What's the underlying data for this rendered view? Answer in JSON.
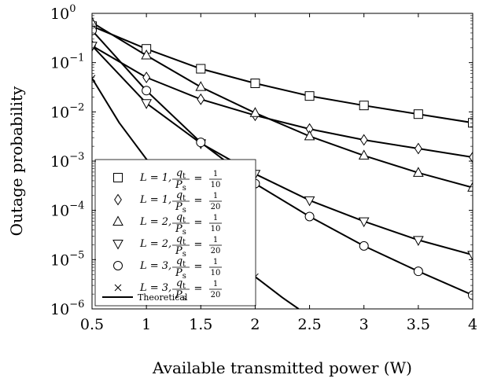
{
  "chart_data": {
    "type": "line",
    "title": "",
    "xlabel": "Available transmitted power (W)",
    "ylabel": "Outage probability",
    "xlim": [
      0.5,
      4
    ],
    "ylim_log10": [
      -6,
      0
    ],
    "y_scale": "log",
    "grid": false,
    "legend_position": "bottom-left",
    "x_ticks": [
      "0.5",
      "1",
      "1.5",
      "2",
      "2.5",
      "3",
      "3.5",
      "4"
    ],
    "x_tick_values": [
      0.5,
      1,
      1.5,
      2,
      2.5,
      3,
      3.5,
      4
    ],
    "y_ticks": [
      {
        "base": "10",
        "exp": "0",
        "value": 1
      },
      {
        "base": "10",
        "exp": "−1",
        "value": 0.1
      },
      {
        "base": "10",
        "exp": "−2",
        "value": 0.01
      },
      {
        "base": "10",
        "exp": "−3",
        "value": 0.001
      },
      {
        "base": "10",
        "exp": "−4",
        "value": 0.0001
      },
      {
        "base": "10",
        "exp": "−5",
        "value": 1e-05
      },
      {
        "base": "10",
        "exp": "−6",
        "value": 1e-06
      }
    ],
    "series": [
      {
        "marker": "square",
        "legend": {
          "L": "L = 1,",
          "num": "q",
          "num_sub": "t",
          "den": "P",
          "den_sub": "s",
          "frac_num": "1",
          "frac_den": "10"
        },
        "x": [
          0.5,
          1,
          1.5,
          2,
          2.5,
          3,
          3.5,
          4
        ],
        "y": [
          0.55,
          0.19,
          0.075,
          0.038,
          0.021,
          0.0135,
          0.009,
          0.006
        ],
        "marker_x": [
          0.5,
          1,
          1.5,
          2,
          2.5,
          3,
          3.5,
          4
        ],
        "marker_y": [
          0.55,
          0.19,
          0.075,
          0.038,
          0.021,
          0.0135,
          0.009,
          0.006
        ]
      },
      {
        "marker": "diamond",
        "legend": {
          "L": "L = 1,",
          "num": "q",
          "num_sub": "t",
          "den": "P",
          "den_sub": "s",
          "frac_num": "1",
          "frac_den": "20"
        },
        "x": [
          0.5,
          1,
          1.5,
          2,
          2.5,
          3,
          3.5,
          4
        ],
        "y": [
          0.22,
          0.05,
          0.018,
          0.0085,
          0.0045,
          0.0027,
          0.0018,
          0.0012
        ],
        "marker_x": [
          0.5,
          1,
          1.5,
          2,
          2.5,
          3,
          3.5,
          4
        ],
        "marker_y": [
          0.22,
          0.05,
          0.018,
          0.0085,
          0.0045,
          0.0027,
          0.0018,
          0.0012
        ]
      },
      {
        "marker": "triangle-up",
        "legend": {
          "L": "L = 2,",
          "num": "q",
          "num_sub": "t",
          "den": "P",
          "den_sub": "s",
          "frac_num": "1",
          "frac_den": "10"
        },
        "x": [
          0.5,
          1,
          1.5,
          2,
          2.5,
          3,
          3.5,
          4
        ],
        "y": [
          0.65,
          0.14,
          0.032,
          0.0095,
          0.0032,
          0.0013,
          0.00058,
          0.00029
        ],
        "marker_x": [
          0.5,
          1,
          1.5,
          2,
          2.5,
          3,
          3.5,
          4
        ],
        "marker_y": [
          0.65,
          0.14,
          0.032,
          0.0095,
          0.0032,
          0.0013,
          0.00058,
          0.00029
        ]
      },
      {
        "marker": "triangle-down",
        "legend": {
          "L": "L = 2,",
          "num": "q",
          "num_sub": "t",
          "den": "P",
          "den_sub": "s",
          "frac_num": "1",
          "frac_den": "20"
        },
        "x": [
          0.5,
          1,
          1.5,
          2,
          2.5,
          3,
          3.5,
          4
        ],
        "y": [
          0.22,
          0.015,
          0.0023,
          0.00055,
          0.00016,
          6e-05,
          2.5e-05,
          1.25e-05
        ],
        "marker_x": [
          0.5,
          1,
          1.5,
          2,
          2.5,
          3,
          3.5,
          4
        ],
        "marker_y": [
          0.22,
          0.015,
          0.0023,
          0.00055,
          0.00016,
          6e-05,
          2.5e-05,
          1.25e-05
        ]
      },
      {
        "marker": "circle",
        "legend": {
          "L": "L = 3,",
          "num": "q",
          "num_sub": "t",
          "den": "P",
          "den_sub": "s",
          "frac_num": "1",
          "frac_den": "10"
        },
        "x": [
          0.5,
          1,
          1.5,
          2,
          2.5,
          3,
          3.5,
          4
        ],
        "y": [
          0.45,
          0.027,
          0.0024,
          0.00035,
          7.5e-05,
          1.9e-05,
          5.8e-06,
          1.9e-06
        ],
        "marker_x": [
          0.5,
          1,
          1.5,
          2,
          2.5,
          3,
          3.5,
          4
        ],
        "marker_y": [
          0.45,
          0.027,
          0.0024,
          0.00035,
          7.5e-05,
          1.9e-05,
          5.8e-06,
          1.9e-06
        ]
      },
      {
        "marker": "x",
        "legend": {
          "L": "L = 3,",
          "num": "q",
          "num_sub": "t",
          "den": "P",
          "den_sub": "s",
          "frac_num": "1",
          "frac_den": "20"
        },
        "x": [
          0.5,
          0.75,
          1,
          1.25,
          1.5,
          1.75,
          2,
          2.25,
          2.4
        ],
        "y": [
          0.048,
          0.006,
          0.0011,
          0.00028,
          8.5e-05,
          2.6e-05,
          4.5e-06,
          1.7e-06,
          1e-06
        ],
        "marker_x": [
          0.5,
          2
        ],
        "marker_y": [
          0.048,
          4.5e-06
        ]
      }
    ],
    "theoretical_label": "Theoretical"
  }
}
